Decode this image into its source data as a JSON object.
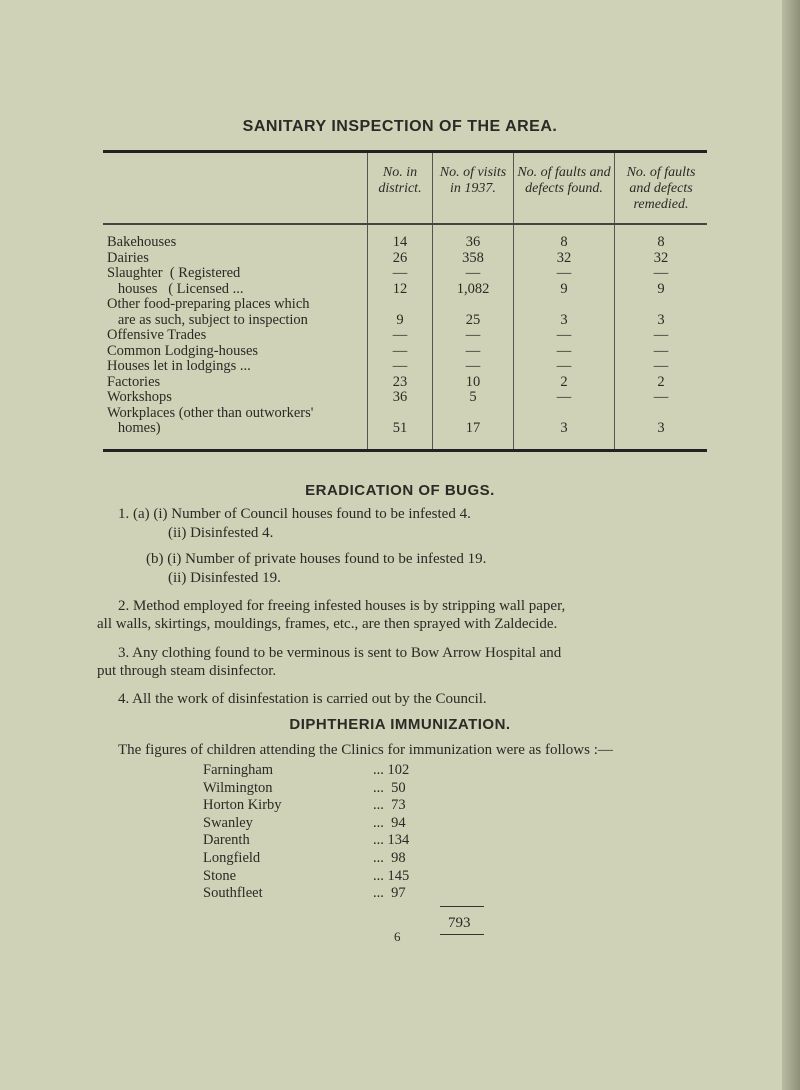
{
  "heading": "SANITARY INSPECTION OF THE AREA.",
  "table": {
    "columns": [
      "No. in district.",
      "No. of visits in 1937.",
      "No. of faults and defects found.",
      "No. of faults and defects remedied."
    ],
    "rows": [
      {
        "label": "Bakehouses",
        "values": [
          "14",
          "36",
          "8",
          "8"
        ]
      },
      {
        "label": "Dairies",
        "values": [
          "26",
          "358",
          "32",
          "32"
        ]
      },
      {
        "label": "Slaughter  ( Registered",
        "values": [
          "—",
          "—",
          "—",
          "—"
        ]
      },
      {
        "label": "   houses   ( Licensed ...",
        "values": [
          "12",
          "1,082",
          "9",
          "9"
        ]
      },
      {
        "label": "Other food-preparing places which",
        "values": [
          "",
          "",
          "",
          ""
        ]
      },
      {
        "label": "   are as such, subject to inspection",
        "values": [
          "9",
          "25",
          "3",
          "3"
        ]
      },
      {
        "label": "Offensive Trades",
        "values": [
          "—",
          "—",
          "—",
          "—"
        ]
      },
      {
        "label": "Common Lodging-houses",
        "values": [
          "—",
          "—",
          "—",
          "—"
        ]
      },
      {
        "label": "Houses let in lodgings ...",
        "values": [
          "—",
          "—",
          "—",
          "—"
        ]
      },
      {
        "label": "Factories",
        "values": [
          "23",
          "10",
          "2",
          "2"
        ]
      },
      {
        "label": "Workshops",
        "values": [
          "36",
          "5",
          "—",
          "—"
        ]
      },
      {
        "label": "Workplaces (other than outworkers'",
        "values": [
          "",
          "",
          "",
          ""
        ]
      },
      {
        "label": "   homes)",
        "values": [
          "51",
          "17",
          "3",
          "3"
        ]
      }
    ]
  },
  "bugs": {
    "heading": "ERADICATION OF BUGS.",
    "lines": [
      "1.  (a)  (i)  Number of Council houses found to be infested 4.",
      "(ii)  Disinfested 4.",
      "(b)  (i)  Number of private houses found to be infested 19.",
      "(ii)  Disinfested 19.",
      "2.  Method employed for freeing infested houses is by stripping wall paper,",
      "all walls, skirtings, mouldings, frames, etc., are then sprayed with Zaldecide.",
      "3.  Any clothing found to be verminous is sent to Bow Arrow Hospital and",
      "put through steam disinfector.",
      "4.  All the work of disinfestation is carried out by the Council."
    ]
  },
  "diphtheria": {
    "heading": "DIPHTHERIA IMMUNIZATION.",
    "intro": "The figures of children attending the Clinics for immunization were as follows :—",
    "clinics": [
      {
        "name": "Farningham",
        "value": "... 102"
      },
      {
        "name": "Wilmington",
        "value": "...  50"
      },
      {
        "name": "Horton Kirby",
        "value": "...  73"
      },
      {
        "name": "Swanley",
        "value": "...  94"
      },
      {
        "name": "Darenth",
        "value": "... 134"
      },
      {
        "name": "Longfield",
        "value": "...  98"
      },
      {
        "name": "Stone",
        "value": "... 145"
      },
      {
        "name": "Southfleet",
        "value": "...  97"
      }
    ],
    "total": "793"
  },
  "page_number": "6"
}
